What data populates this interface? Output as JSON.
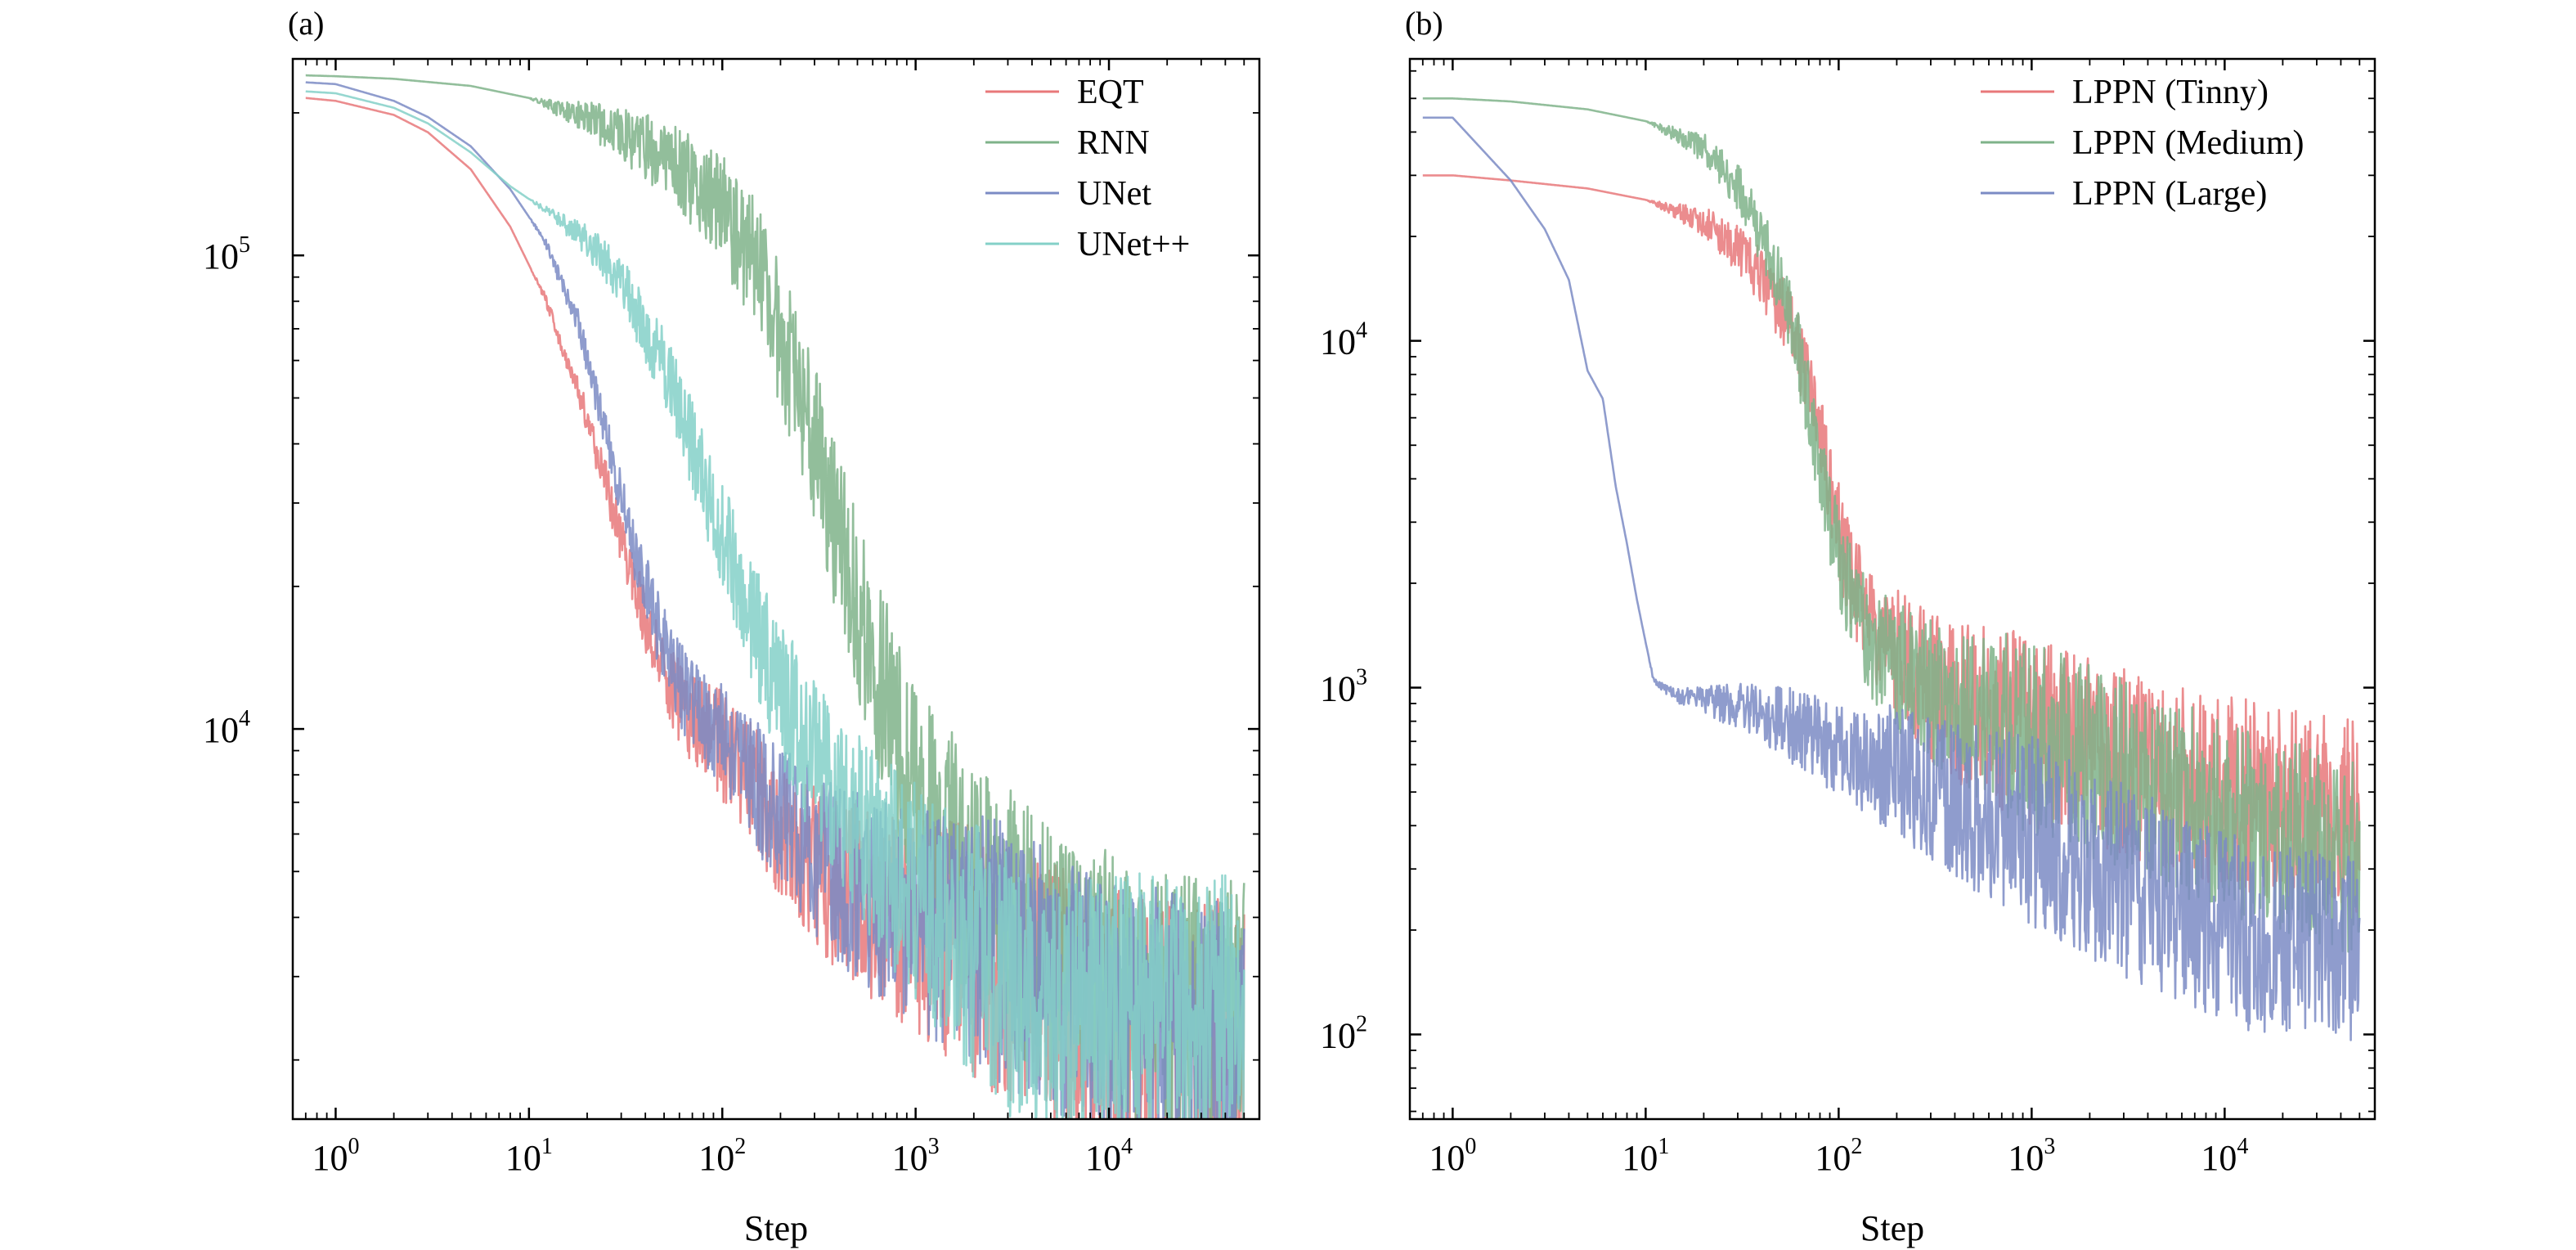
{
  "chart_data": [
    {
      "type": "line",
      "panel_label": "(a)",
      "xlabel": "Step",
      "ylabel": "",
      "xscale": "log",
      "yscale": "log",
      "xlim": [
        0.6,
        60000
      ],
      "ylim": [
        1500,
        260000
      ],
      "xticks": [
        1,
        10,
        100,
        1000,
        10000
      ],
      "yticks": [
        10000,
        100000
      ],
      "legend_position": "top-right",
      "grid": false,
      "series": [
        {
          "name": "EQT",
          "color": "#e8787a",
          "x": [
            0.7,
            1,
            2,
            3,
            5,
            8,
            12,
            18,
            25,
            35,
            50,
            70,
            100,
            200,
            400,
            1000,
            3000,
            10000,
            50000
          ],
          "y": [
            215000,
            212000,
            198000,
            182000,
            152000,
            115000,
            82000,
            52000,
            33000,
            20000,
            13000,
            10500,
            9200,
            6200,
            4700,
            3900,
            3100,
            2400,
            2300
          ]
        },
        {
          "name": "RNN",
          "color": "#7fb389",
          "x": [
            0.7,
            1,
            2,
            5,
            10,
            20,
            40,
            70,
            100,
            150,
            200,
            300,
            400,
            600,
            800,
            1000,
            1500,
            2000,
            3000,
            5000,
            10000,
            20000,
            50000
          ],
          "y": [
            240000,
            239000,
            236000,
            228000,
            215000,
            195000,
            170000,
            145000,
            125000,
            95000,
            68000,
            40000,
            25000,
            14000,
            9500,
            7500,
            5600,
            4700,
            4000,
            3400,
            2900,
            2600,
            2500
          ]
        },
        {
          "name": "UNet",
          "color": "#7b8bc4",
          "x": [
            0.7,
            1,
            2,
            3,
            5,
            8,
            12,
            18,
            25,
            35,
            45,
            60,
            80,
            100,
            200,
            400,
            1000,
            3000,
            10000,
            50000
          ],
          "y": [
            232000,
            230000,
            212000,
            196000,
            170000,
            138000,
            108000,
            72000,
            42000,
            24000,
            17000,
            12500,
            10500,
            9500,
            6500,
            4900,
            4000,
            3300,
            2500,
            2300
          ]
        },
        {
          "name": "UNet++",
          "color": "#84d0c8",
          "x": [
            0.7,
            1,
            2,
            3,
            5,
            8,
            12,
            20,
            30,
            50,
            70,
            100,
            150,
            200,
            300,
            500,
            1000,
            2000,
            3000,
            5000,
            10000,
            50000
          ],
          "y": [
            222000,
            220000,
            205000,
            190000,
            165000,
            140000,
            125000,
            108000,
            88000,
            58000,
            40000,
            26000,
            16000,
            12000,
            8500,
            6200,
            4500,
            3400,
            2900,
            2700,
            2600,
            2600
          ]
        }
      ]
    },
    {
      "type": "line",
      "panel_label": "(b)",
      "xlabel": "Step",
      "ylabel": "",
      "xscale": "log",
      "yscale": "log",
      "xlim": [
        0.6,
        60000
      ],
      "ylim": [
        57,
        65000
      ],
      "xticks": [
        1,
        10,
        100,
        1000,
        10000
      ],
      "yticks": [
        100,
        1000,
        10000
      ],
      "legend_position": "top-right",
      "grid": false,
      "series": [
        {
          "name": "LPPN (Tinny)",
          "color": "#e8787a",
          "x": [
            0.7,
            1,
            2,
            5,
            10,
            20,
            30,
            40,
            50,
            60,
            70,
            80,
            90,
            100,
            120,
            150,
            200,
            300,
            500,
            1000,
            3000,
            10000,
            50000
          ],
          "y": [
            30000,
            30000,
            29000,
            27500,
            25500,
            22000,
            18500,
            15000,
            12500,
            10000,
            7500,
            5500,
            3900,
            2800,
            2000,
            1500,
            1250,
            1000,
            860,
            740,
            620,
            500,
            420
          ]
        },
        {
          "name": "LPPN (Medium)",
          "color": "#7fb389",
          "x": [
            0.7,
            1,
            2,
            5,
            10,
            20,
            30,
            40,
            50,
            60,
            70,
            80,
            100,
            120,
            150,
            200,
            300,
            500,
            1000,
            3000,
            10000,
            50000
          ],
          "y": [
            50000,
            50000,
            49000,
            46500,
            43000,
            36000,
            28000,
            20000,
            14500,
            10000,
            6500,
            4200,
            2300,
            1700,
            1350,
            1150,
            980,
            850,
            720,
            560,
            420,
            320
          ]
        },
        {
          "name": "LPPN (Large)",
          "color": "#7b8bc4",
          "x": [
            0.7,
            1,
            2,
            3,
            4,
            5,
            6,
            7,
            8,
            9,
            10,
            11,
            13,
            15,
            20,
            30,
            50,
            100,
            300,
            1000,
            3000,
            10000,
            50000
          ],
          "y": [
            44000,
            44000,
            29000,
            21000,
            15000,
            8200,
            6800,
            3800,
            2600,
            1800,
            1350,
            1050,
            980,
            940,
            930,
            880,
            800,
            680,
            520,
            380,
            280,
            200,
            170
          ]
        }
      ]
    }
  ]
}
